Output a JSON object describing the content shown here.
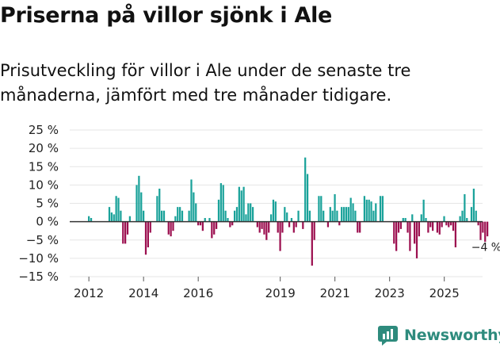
{
  "header": {
    "title": "Priserna på villor sjönk i Ale",
    "subtitle": "Prisutveckling för villor i Ale under de senaste tre månaderna, jämfört med tre månader tidigare."
  },
  "brand": {
    "name": "Newsworthy",
    "icon": "newsworthy-logo-icon"
  },
  "colors": {
    "positive": "#1aa29a",
    "negative": "#9c1050",
    "grid": "#e6e6e6",
    "zero": "#333333",
    "brand": "#2e8b7d"
  },
  "chart_data": {
    "type": "bar",
    "title": "Priserna på villor sjönk i Ale",
    "subtitle": "Prisutveckling för villor i Ale under de senaste tre månaderna, jämfört med tre månader tidigare.",
    "xlabel": "",
    "ylabel": "",
    "unit": "%",
    "ylim": [
      -15,
      25
    ],
    "y_ticks": [
      25,
      20,
      15,
      10,
      5,
      0,
      -5,
      -10,
      -15
    ],
    "y_tick_labels": [
      "25 %",
      "20 %",
      "15 %",
      "10 %",
      "5 %",
      "0 %",
      "−5 %",
      "−10 %",
      "−15 %"
    ],
    "x_tick_labels": [
      "2012",
      "2014",
      "2016",
      "2019",
      "2021",
      "2023",
      "2025"
    ],
    "x_tick_positions": [
      2012,
      2014,
      2016,
      2019,
      2021,
      2023,
      2025
    ],
    "x_range": [
      2011.3,
      2026.4
    ],
    "x_start": 2012.0,
    "x_step": 0.0833,
    "annotation": "−4 %",
    "values": [
      1.5,
      1.0,
      0,
      0,
      0,
      0,
      0,
      0,
      0,
      4.0,
      2.5,
      2.0,
      7.0,
      6.5,
      3.0,
      -6.0,
      -6.0,
      -3.5,
      1.5,
      0,
      0,
      10.0,
      12.5,
      8.0,
      3.0,
      -9.0,
      -7.0,
      -3.0,
      0,
      0,
      7.0,
      9.0,
      3.0,
      3.0,
      0,
      -3.5,
      -4.0,
      -2.5,
      1.5,
      4.0,
      4.0,
      3.0,
      0,
      0,
      3.0,
      11.5,
      8.0,
      5.0,
      -1.0,
      -1.0,
      -2.5,
      1.0,
      0,
      1.0,
      -4.5,
      -3.5,
      -2.0,
      6.0,
      10.5,
      10.0,
      3.0,
      1.0,
      -1.5,
      -1.0,
      3.0,
      4.0,
      9.5,
      8.5,
      9.5,
      2.0,
      5.0,
      5.0,
      4.0,
      0,
      -1.5,
      -3.0,
      -2.0,
      -3.5,
      -5.0,
      -3.0,
      2.0,
      6.0,
      5.5,
      -3.0,
      -8.0,
      -3.0,
      4.0,
      2.5,
      -1.5,
      1.0,
      -3.0,
      -1.5,
      3.0,
      0,
      -2.0,
      17.5,
      13.0,
      3.0,
      -12.0,
      -5.0,
      0,
      7.0,
      7.0,
      3.0,
      0,
      -1.5,
      4.0,
      3.0,
      7.5,
      3.0,
      -1.0,
      4.0,
      4.0,
      4.0,
      4.0,
      6.5,
      5.0,
      3.0,
      -3.0,
      -3.0,
      0,
      7.0,
      6.0,
      6.0,
      5.5,
      3.0,
      5.0,
      0,
      7.0,
      7.0,
      0,
      0,
      0,
      0,
      -6.0,
      -8.0,
      -3.0,
      -2.0,
      1.0,
      1.0,
      -3.0,
      -8.0,
      2.0,
      -6.0,
      -10.0,
      -4.0,
      2.0,
      6.0,
      1.0,
      -3.0,
      -1.5,
      -2.5,
      0,
      -3.0,
      -3.5,
      -1.5,
      1.5,
      -1.0,
      -1.5,
      -1.0,
      -2.5,
      -7.0,
      0,
      1.5,
      3.0,
      7.5,
      1.0,
      0,
      4.0,
      9.0,
      3.0,
      -1.0,
      -5.0,
      -3.0,
      -5.5,
      -4.0
    ]
  }
}
